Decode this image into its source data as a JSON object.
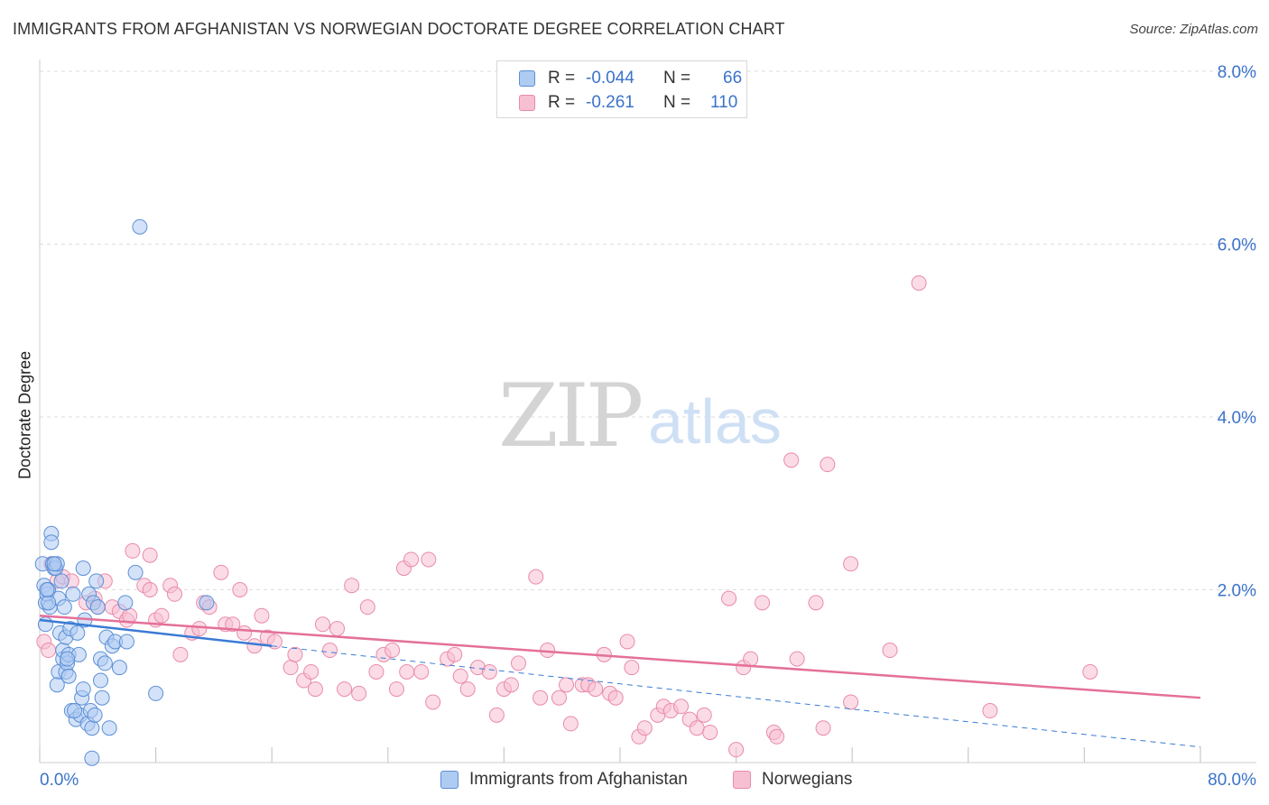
{
  "title": "IMMIGRANTS FROM AFGHANISTAN VS NORWEGIAN DOCTORATE DEGREE CORRELATION CHART",
  "source": "Source: ZipAtlas.com",
  "watermark": {
    "zip": "ZIP",
    "atlas": "atlas"
  },
  "legend": {
    "rows": [
      {
        "r_label": "R =",
        "r_value": "-0.044",
        "n_label": "N =",
        "n_value": "66"
      },
      {
        "r_label": "R =",
        "r_value": "-0.261",
        "n_label": "N =",
        "n_value": "110"
      }
    ]
  },
  "colors": {
    "blue_fill": "#aecbf2",
    "blue_stroke": "#5b8fd6",
    "blue_line": "#3a7bd5",
    "pink_fill": "#f7bfd2",
    "pink_stroke": "#e98aab",
    "pink_line": "#e4709a",
    "accent_text": "#3b73c9",
    "grid": "#dddddd"
  },
  "chart_data": {
    "type": "scatter",
    "title": "IMMIGRANTS FROM AFGHANISTAN VS NORWEGIAN DOCTORATE DEGREE CORRELATION CHART",
    "xlabel": "",
    "ylabel": "Doctorate Degree",
    "xlim": [
      0,
      80
    ],
    "ylim": [
      0,
      8
    ],
    "x_tick_labels": [
      "0.0%",
      "80.0%"
    ],
    "y_ticks": [
      2,
      4,
      6,
      8
    ],
    "y_tick_labels": [
      "2.0%",
      "4.0%",
      "6.0%",
      "8.0%"
    ],
    "grid": true,
    "series": [
      {
        "name": "Immigrants from Afghanistan",
        "color": "blue",
        "trend": {
          "x": [
            0,
            16
          ],
          "y": [
            1.65,
            1.35
          ],
          "dashed_to": [
            80,
            0.18
          ]
        },
        "points": [
          [
            0.2,
            2.3
          ],
          [
            0.3,
            2.05
          ],
          [
            0.4,
            1.85
          ],
          [
            0.5,
            1.95
          ],
          [
            0.6,
            2.0
          ],
          [
            0.7,
            1.8
          ],
          [
            0.8,
            2.65
          ],
          [
            0.8,
            2.55
          ],
          [
            0.9,
            2.3
          ],
          [
            1.0,
            2.25
          ],
          [
            1.1,
            2.25
          ],
          [
            1.2,
            2.3
          ],
          [
            1.3,
            1.9
          ],
          [
            1.3,
            1.05
          ],
          [
            1.4,
            1.5
          ],
          [
            1.5,
            2.1
          ],
          [
            1.6,
            1.2
          ],
          [
            1.6,
            1.3
          ],
          [
            1.7,
            1.8
          ],
          [
            1.8,
            1.45
          ],
          [
            1.8,
            1.05
          ],
          [
            1.9,
            1.15
          ],
          [
            2.0,
            1.25
          ],
          [
            2.1,
            1.55
          ],
          [
            2.2,
            0.6
          ],
          [
            2.3,
            1.95
          ],
          [
            2.5,
            0.5
          ],
          [
            2.6,
            1.5
          ],
          [
            2.7,
            1.25
          ],
          [
            2.8,
            0.55
          ],
          [
            2.9,
            0.75
          ],
          [
            3.0,
            2.25
          ],
          [
            3.0,
            0.85
          ],
          [
            3.1,
            1.65
          ],
          [
            3.3,
            0.45
          ],
          [
            3.4,
            1.95
          ],
          [
            3.5,
            0.6
          ],
          [
            3.6,
            0.4
          ],
          [
            3.7,
            1.85
          ],
          [
            3.9,
            2.1
          ],
          [
            4.0,
            1.8
          ],
          [
            4.2,
            1.2
          ],
          [
            4.2,
            0.95
          ],
          [
            4.3,
            0.75
          ],
          [
            4.5,
            1.15
          ],
          [
            4.6,
            1.45
          ],
          [
            4.8,
            0.4
          ],
          [
            5.0,
            1.35
          ],
          [
            5.2,
            1.4
          ],
          [
            5.5,
            1.1
          ],
          [
            5.9,
            1.85
          ],
          [
            6.0,
            1.4
          ],
          [
            6.6,
            2.2
          ],
          [
            6.9,
            6.2
          ],
          [
            8.0,
            0.8
          ],
          [
            11.5,
            1.85
          ],
          [
            0.4,
            1.6
          ],
          [
            0.6,
            1.85
          ],
          [
            1.0,
            2.3
          ],
          [
            1.9,
            1.2
          ],
          [
            0.5,
            2.0
          ],
          [
            2.4,
            0.6
          ],
          [
            3.8,
            0.55
          ],
          [
            1.2,
            0.9
          ],
          [
            3.6,
            0.05
          ],
          [
            2.0,
            1.0
          ]
        ]
      },
      {
        "name": "Norwegians",
        "color": "pink",
        "trend": {
          "x": [
            0,
            80
          ],
          "y": [
            1.7,
            0.75
          ]
        },
        "points": [
          [
            0.3,
            1.4
          ],
          [
            0.8,
            2.3
          ],
          [
            1.2,
            2.1
          ],
          [
            1.6,
            2.15
          ],
          [
            2.2,
            2.1
          ],
          [
            3.2,
            1.85
          ],
          [
            3.8,
            1.9
          ],
          [
            4.0,
            1.8
          ],
          [
            4.5,
            2.1
          ],
          [
            5.0,
            1.8
          ],
          [
            5.5,
            1.75
          ],
          [
            6.0,
            1.65
          ],
          [
            6.2,
            1.7
          ],
          [
            6.4,
            2.45
          ],
          [
            7.2,
            2.05
          ],
          [
            7.6,
            2.0
          ],
          [
            7.6,
            2.4
          ],
          [
            8.0,
            1.65
          ],
          [
            8.4,
            1.7
          ],
          [
            9.0,
            2.05
          ],
          [
            9.3,
            1.95
          ],
          [
            9.7,
            1.25
          ],
          [
            10.5,
            1.5
          ],
          [
            11.0,
            1.55
          ],
          [
            11.3,
            1.85
          ],
          [
            11.7,
            1.8
          ],
          [
            12.5,
            2.2
          ],
          [
            12.8,
            1.6
          ],
          [
            13.3,
            1.6
          ],
          [
            13.8,
            2.0
          ],
          [
            14.1,
            1.5
          ],
          [
            14.8,
            1.35
          ],
          [
            15.3,
            1.7
          ],
          [
            15.7,
            1.45
          ],
          [
            16.2,
            1.4
          ],
          [
            17.3,
            1.1
          ],
          [
            17.6,
            1.25
          ],
          [
            18.2,
            0.95
          ],
          [
            18.7,
            1.05
          ],
          [
            19.0,
            0.85
          ],
          [
            19.5,
            1.6
          ],
          [
            20.0,
            1.3
          ],
          [
            20.5,
            1.55
          ],
          [
            21.0,
            0.85
          ],
          [
            21.5,
            2.05
          ],
          [
            22.0,
            0.8
          ],
          [
            22.6,
            1.8
          ],
          [
            23.2,
            1.05
          ],
          [
            23.7,
            1.25
          ],
          [
            24.3,
            1.3
          ],
          [
            24.6,
            0.85
          ],
          [
            25.1,
            2.25
          ],
          [
            25.3,
            1.05
          ],
          [
            25.6,
            2.35
          ],
          [
            26.3,
            1.05
          ],
          [
            26.8,
            2.35
          ],
          [
            27.1,
            0.7
          ],
          [
            28.1,
            1.2
          ],
          [
            28.6,
            1.25
          ],
          [
            29.0,
            1.0
          ],
          [
            29.5,
            0.85
          ],
          [
            30.2,
            1.1
          ],
          [
            31.0,
            1.05
          ],
          [
            31.5,
            0.55
          ],
          [
            32.0,
            0.85
          ],
          [
            32.5,
            0.9
          ],
          [
            33.0,
            1.15
          ],
          [
            34.2,
            2.15
          ],
          [
            34.5,
            0.75
          ],
          [
            35.0,
            1.3
          ],
          [
            35.8,
            0.75
          ],
          [
            36.3,
            0.9
          ],
          [
            36.6,
            0.45
          ],
          [
            37.4,
            0.9
          ],
          [
            37.8,
            0.9
          ],
          [
            38.3,
            0.85
          ],
          [
            38.9,
            1.25
          ],
          [
            39.3,
            0.8
          ],
          [
            39.7,
            0.75
          ],
          [
            40.5,
            1.4
          ],
          [
            40.8,
            1.1
          ],
          [
            41.3,
            0.3
          ],
          [
            41.7,
            0.4
          ],
          [
            42.6,
            0.55
          ],
          [
            43.0,
            0.65
          ],
          [
            43.5,
            0.6
          ],
          [
            44.2,
            0.65
          ],
          [
            44.8,
            0.5
          ],
          [
            45.3,
            0.4
          ],
          [
            45.8,
            0.55
          ],
          [
            46.2,
            0.35
          ],
          [
            47.5,
            1.9
          ],
          [
            48.0,
            0.15
          ],
          [
            48.5,
            1.1
          ],
          [
            49.0,
            1.2
          ],
          [
            49.8,
            1.85
          ],
          [
            50.6,
            0.35
          ],
          [
            50.8,
            0.3
          ],
          [
            51.8,
            3.5
          ],
          [
            52.2,
            1.2
          ],
          [
            53.5,
            1.85
          ],
          [
            54.0,
            0.4
          ],
          [
            54.3,
            3.45
          ],
          [
            55.9,
            2.3
          ],
          [
            55.9,
            0.7
          ],
          [
            58.6,
            1.3
          ],
          [
            60.6,
            5.55
          ],
          [
            65.5,
            0.6
          ],
          [
            72.4,
            1.05
          ],
          [
            0.6,
            1.3
          ]
        ]
      }
    ]
  },
  "bottom_legend": {
    "items": [
      {
        "label": "Immigrants from Afghanistan"
      },
      {
        "label": "Norwegians"
      }
    ]
  }
}
